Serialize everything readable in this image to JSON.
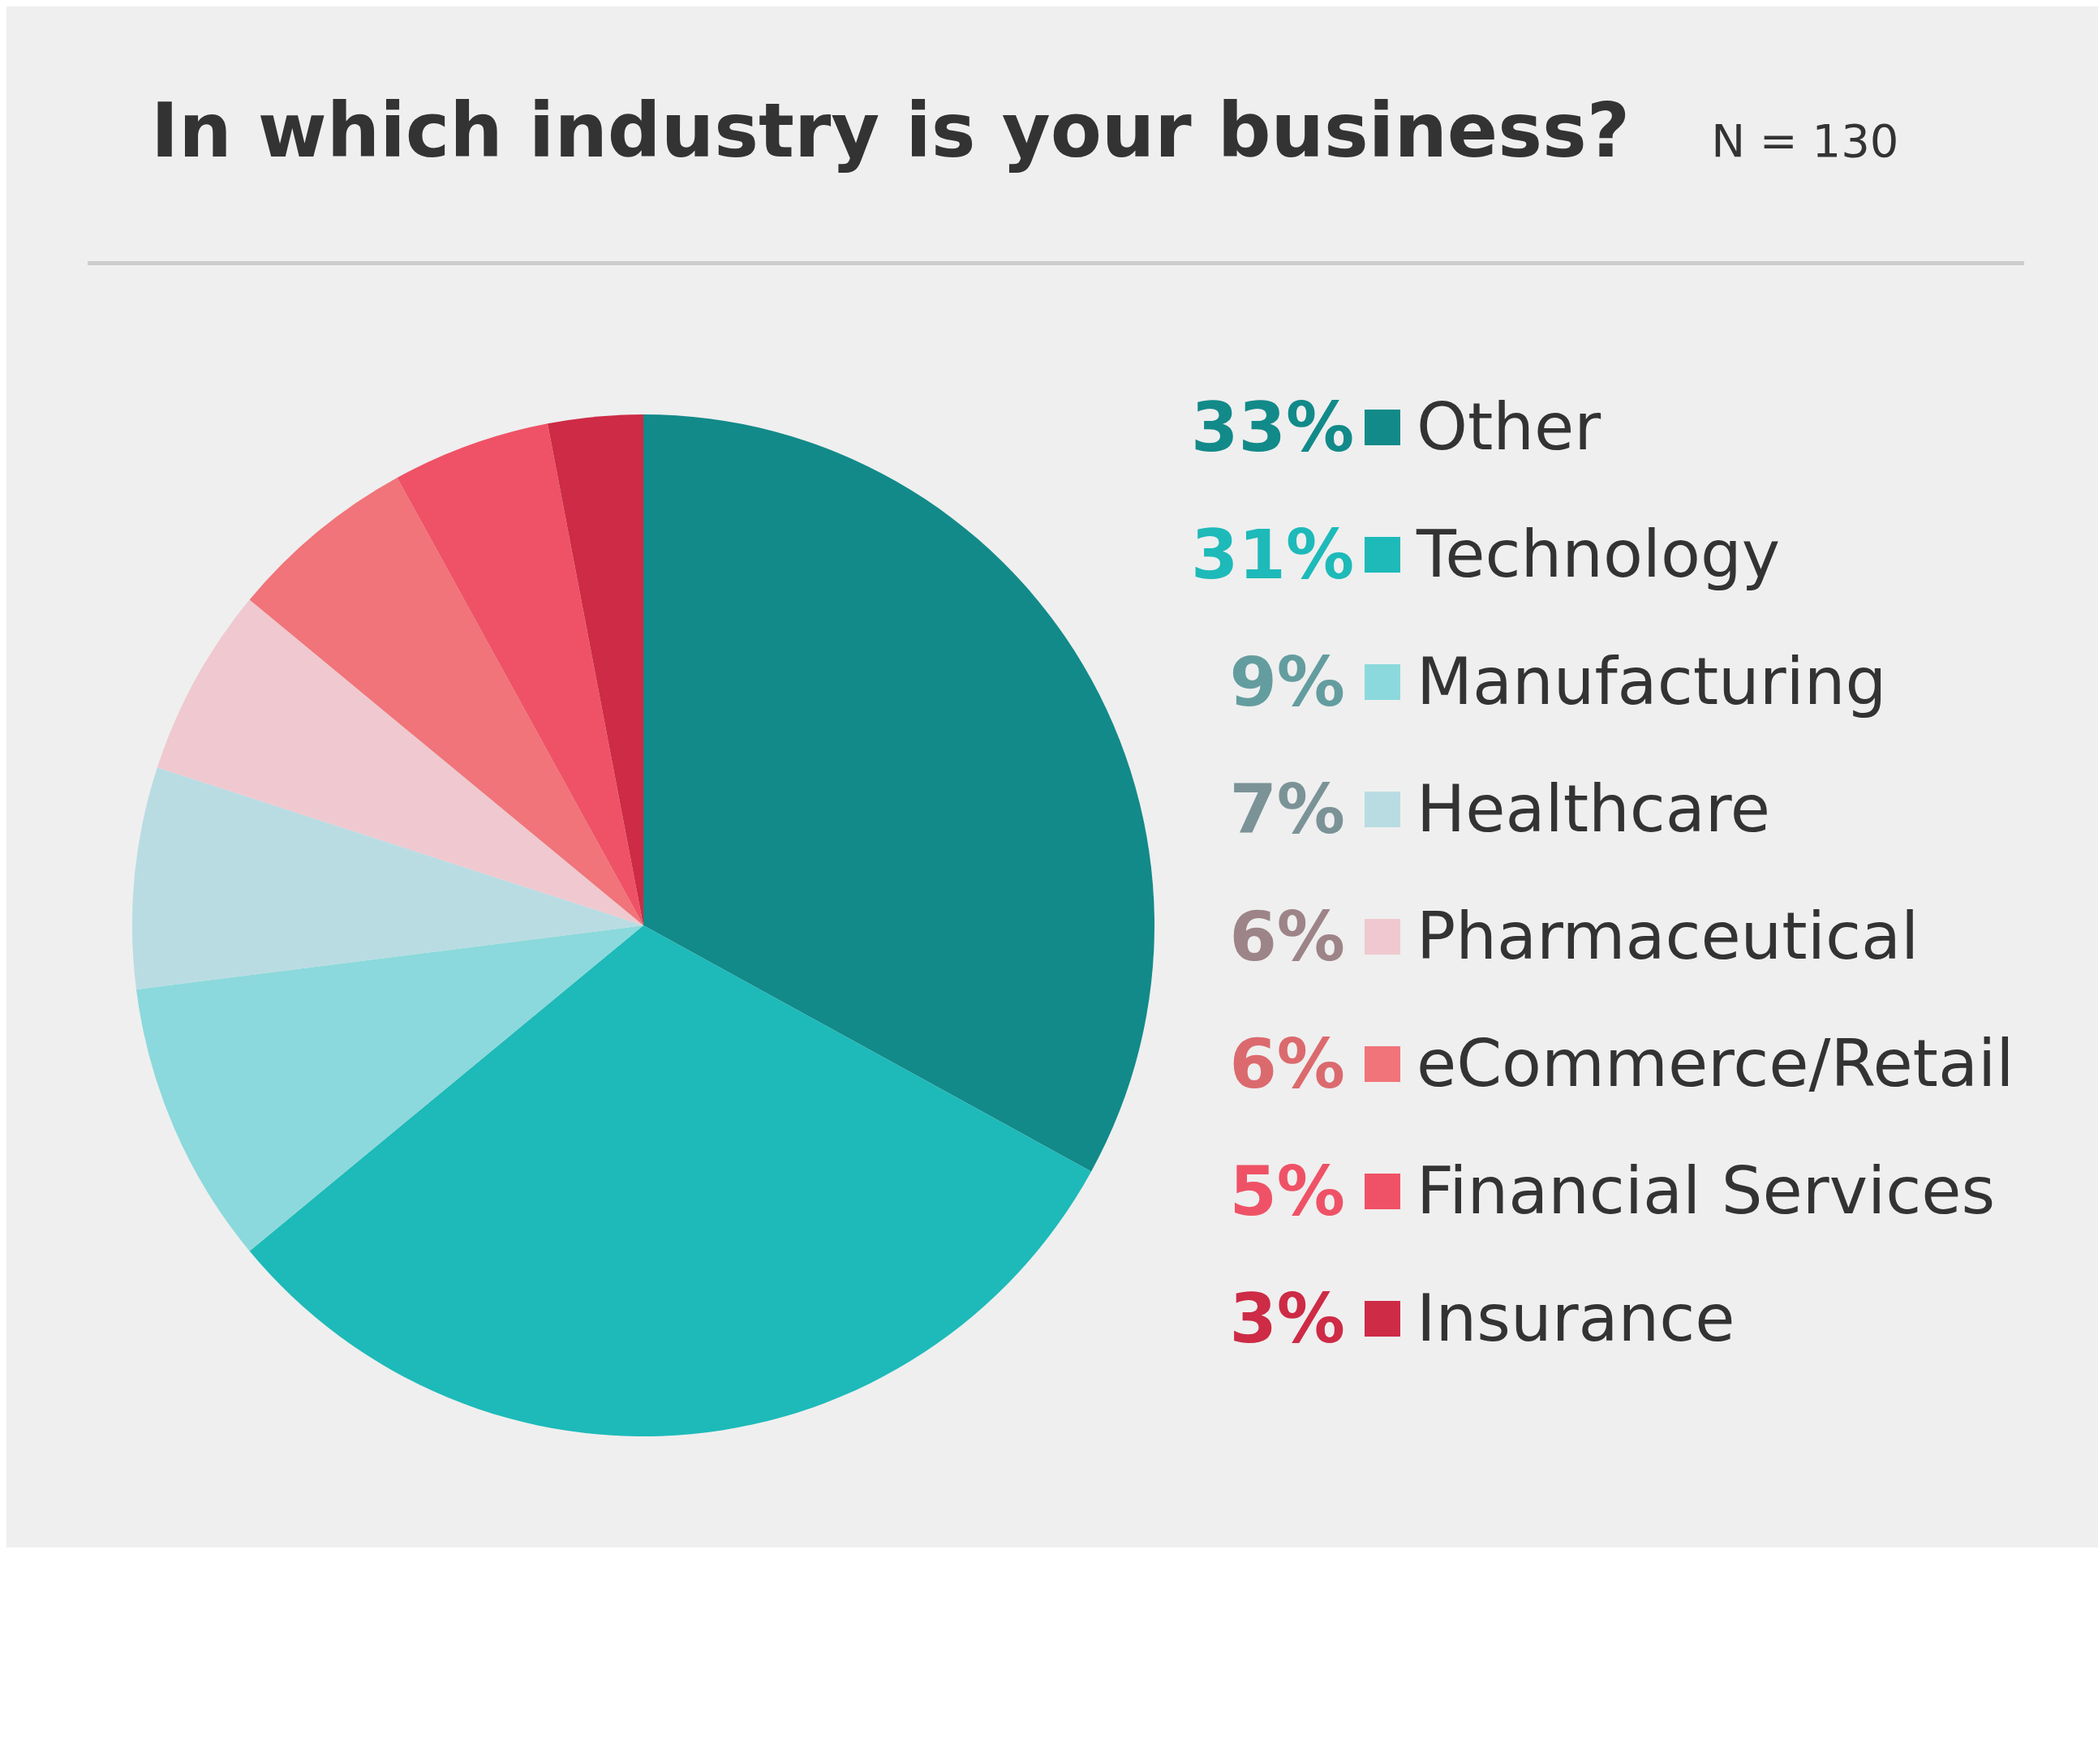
{
  "chart_data": {
    "type": "pie",
    "title": "In which industry is your business?",
    "subtitle": "N = 130",
    "categories": [
      "Other",
      "Technology",
      "Manufacturing",
      "Healthcare",
      "Pharmaceutical",
      "eCommerce/Retail",
      "Financial Services",
      "Insurance"
    ],
    "values": [
      33,
      31,
      9,
      7,
      6,
      6,
      5,
      3
    ],
    "value_labels": [
      "33%",
      "31%",
      "9%",
      "7%",
      "6%",
      "6%",
      "5%",
      "3%"
    ],
    "colors": [
      "#128a89",
      "#1dbab9",
      "#8bd9dc",
      "#b9dce3",
      "#efc9cf",
      "#f07479",
      "#ef5266",
      "#cd2b46"
    ],
    "legend": "right"
  }
}
